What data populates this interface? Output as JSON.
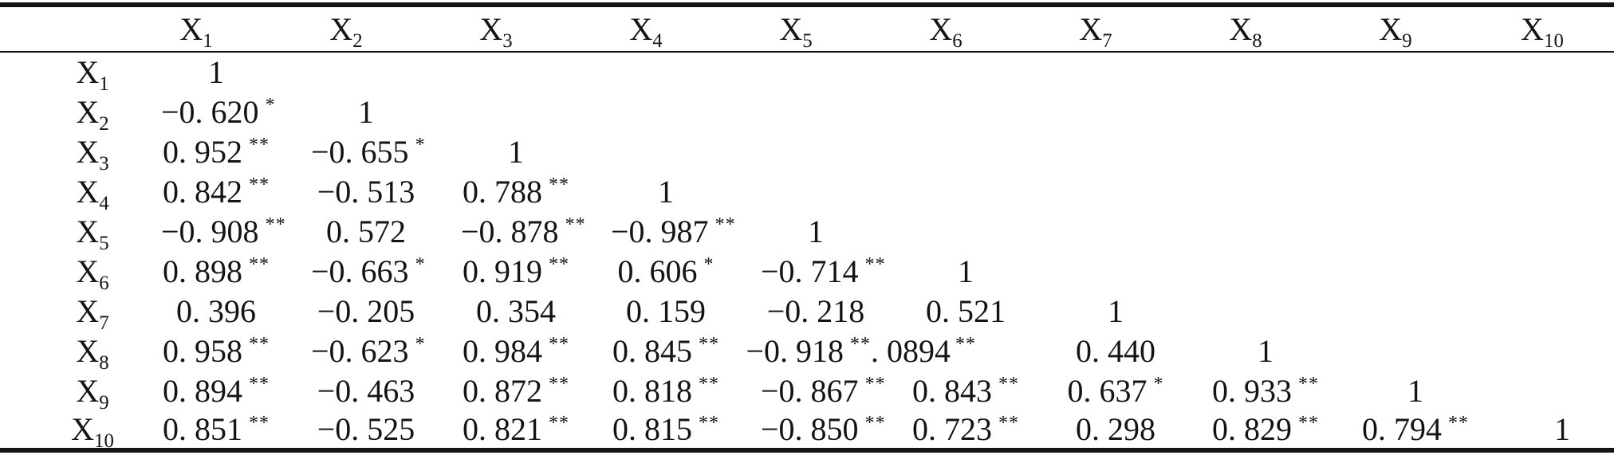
{
  "correlation_table": {
    "corner_label": "",
    "variables": [
      {
        "base": "X",
        "sub": "1"
      },
      {
        "base": "X",
        "sub": "2"
      },
      {
        "base": "X",
        "sub": "3"
      },
      {
        "base": "X",
        "sub": "4"
      },
      {
        "base": "X",
        "sub": "5"
      },
      {
        "base": "X",
        "sub": "6"
      },
      {
        "base": "X",
        "sub": "7"
      },
      {
        "base": "X",
        "sub": "8"
      },
      {
        "base": "X",
        "sub": "9"
      },
      {
        "base": "X",
        "sub": "10"
      }
    ],
    "rows": [
      {
        "cells": [
          {
            "v": "1",
            "s": ""
          }
        ]
      },
      {
        "cells": [
          {
            "v": "−0. 620",
            "s": "*"
          },
          {
            "v": "1",
            "s": ""
          }
        ]
      },
      {
        "cells": [
          {
            "v": "0. 952",
            "s": "**"
          },
          {
            "v": "−0. 655",
            "s": "*"
          },
          {
            "v": "1",
            "s": ""
          }
        ]
      },
      {
        "cells": [
          {
            "v": "0. 842",
            "s": "**"
          },
          {
            "v": "−0. 513",
            "s": ""
          },
          {
            "v": "0. 788",
            "s": "**"
          },
          {
            "v": "1",
            "s": ""
          }
        ]
      },
      {
        "cells": [
          {
            "v": "−0. 908",
            "s": "**"
          },
          {
            "v": "0. 572",
            "s": ""
          },
          {
            "v": "−0. 878",
            "s": "**"
          },
          {
            "v": "−0. 987",
            "s": "**"
          },
          {
            "v": "1",
            "s": ""
          }
        ]
      },
      {
        "cells": [
          {
            "v": "0. 898",
            "s": "**"
          },
          {
            "v": "−0. 663",
            "s": "*"
          },
          {
            "v": "0. 919",
            "s": "**"
          },
          {
            "v": "0. 606",
            "s": "*"
          },
          {
            "v": "−0. 714",
            "s": "**"
          },
          {
            "v": "1",
            "s": ""
          }
        ]
      },
      {
        "cells": [
          {
            "v": "0. 396",
            "s": ""
          },
          {
            "v": "−0. 205",
            "s": ""
          },
          {
            "v": "0. 354",
            "s": ""
          },
          {
            "v": "0. 159",
            "s": ""
          },
          {
            "v": "−0. 218",
            "s": ""
          },
          {
            "v": "0. 521",
            "s": ""
          },
          {
            "v": "1",
            "s": ""
          }
        ]
      },
      {
        "cells": [
          {
            "v": "0. 958",
            "s": "**"
          },
          {
            "v": "−0. 623",
            "s": "*"
          },
          {
            "v": "0. 984",
            "s": "**"
          },
          {
            "v": "0. 845",
            "s": "**"
          },
          {
            "v": "−0. 918",
            "s": "**"
          },
          {
            "v": ". 0894",
            "s": "**"
          },
          {
            "v": "0. 440",
            "s": ""
          },
          {
            "v": "1",
            "s": ""
          }
        ]
      },
      {
        "cells": [
          {
            "v": "0. 894",
            "s": "**"
          },
          {
            "v": "−0. 463",
            "s": ""
          },
          {
            "v": "0. 872",
            "s": "**"
          },
          {
            "v": "0. 818",
            "s": "**"
          },
          {
            "v": "−0. 867",
            "s": "**"
          },
          {
            "v": "0. 843",
            "s": "**"
          },
          {
            "v": "0. 637",
            "s": "*"
          },
          {
            "v": "0. 933",
            "s": "**"
          },
          {
            "v": "1",
            "s": ""
          }
        ]
      },
      {
        "cells": [
          {
            "v": "0. 851",
            "s": "**"
          },
          {
            "v": "−0. 525",
            "s": ""
          },
          {
            "v": "0. 821",
            "s": "**"
          },
          {
            "v": "0. 815",
            "s": "**"
          },
          {
            "v": "−0. 850",
            "s": "**"
          },
          {
            "v": "0. 723",
            "s": "**"
          },
          {
            "v": "0. 298",
            "s": ""
          },
          {
            "v": "0. 829",
            "s": "**"
          },
          {
            "v": "0. 794",
            "s": "**"
          },
          {
            "v": "1",
            "s": ""
          }
        ]
      }
    ]
  }
}
